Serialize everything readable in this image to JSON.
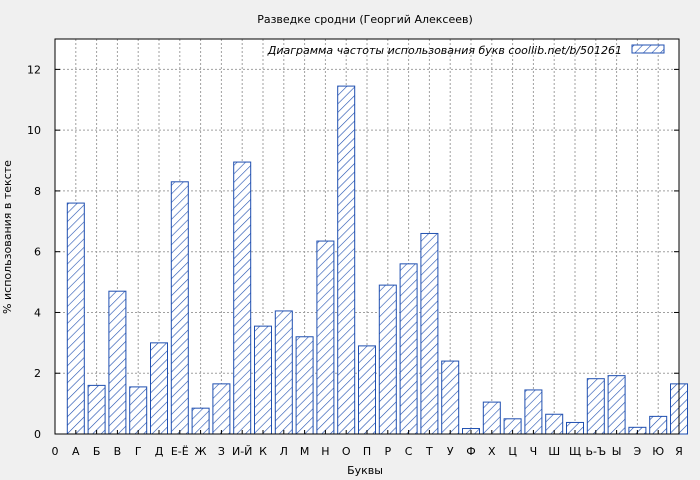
{
  "chart_data": {
    "type": "bar",
    "title": "Разведке сродни (Георгий Алексеев)",
    "xlabel": "Буквы",
    "ylabel": "% использования в тексте",
    "ylim": [
      0,
      13
    ],
    "yticks": [
      0,
      2,
      4,
      6,
      8,
      10,
      12
    ],
    "grid": true,
    "legend_position": "top-right",
    "colors": {
      "bar_stroke": "#1f4fb0",
      "hatch": "#1f4fb0",
      "background": "#f0f0f0",
      "plot_background": "#ffffff"
    },
    "categories": [
      "0",
      "А",
      "Б",
      "В",
      "Г",
      "Д",
      "Е-Ё",
      "Ж",
      "З",
      "И-Й",
      "К",
      "Л",
      "М",
      "Н",
      "О",
      "П",
      "Р",
      "С",
      "Т",
      "У",
      "Ф",
      "Х",
      "Ц",
      "Ч",
      "Ш",
      "Щ",
      "Ь-Ъ",
      "Ы",
      "Э",
      "Ю",
      "Я"
    ],
    "series": [
      {
        "name": "Диаграмма частоты использования букв  coollib.net/b/501261",
        "values": [
          null,
          7.6,
          1.6,
          4.7,
          1.55,
          3.0,
          8.3,
          0.85,
          1.65,
          8.95,
          3.55,
          4.05,
          3.2,
          6.35,
          11.45,
          2.9,
          4.9,
          5.6,
          6.6,
          2.4,
          0.18,
          1.05,
          0.5,
          1.45,
          0.65,
          0.38,
          1.82,
          1.92,
          0.22,
          0.58,
          1.65
        ]
      }
    ]
  }
}
